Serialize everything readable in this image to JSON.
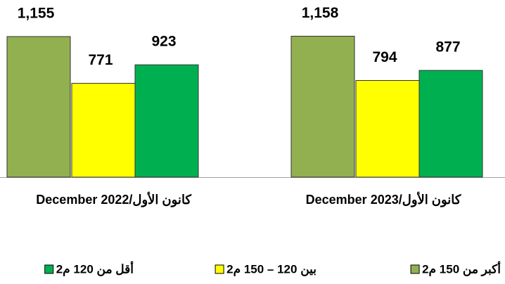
{
  "chart_data": {
    "type": "bar",
    "categories": [
      "December 2022/كانون الأول",
      "December 2023/كانون الأول"
    ],
    "series": [
      {
        "name": "أكبر من 150 م2",
        "color": "#92b050",
        "values": [
          1155,
          1158
        ],
        "value_labels": [
          "1,155",
          "1,158"
        ]
      },
      {
        "name": "بين 120 – 150 م2",
        "color": "#ffff00",
        "values": [
          771,
          794
        ],
        "value_labels": [
          "771",
          "794"
        ]
      },
      {
        "name": "أقل من 120 م2",
        "color": "#00b050",
        "values": [
          923,
          877
        ],
        "value_labels": [
          "923",
          "877"
        ]
      }
    ]
  }
}
